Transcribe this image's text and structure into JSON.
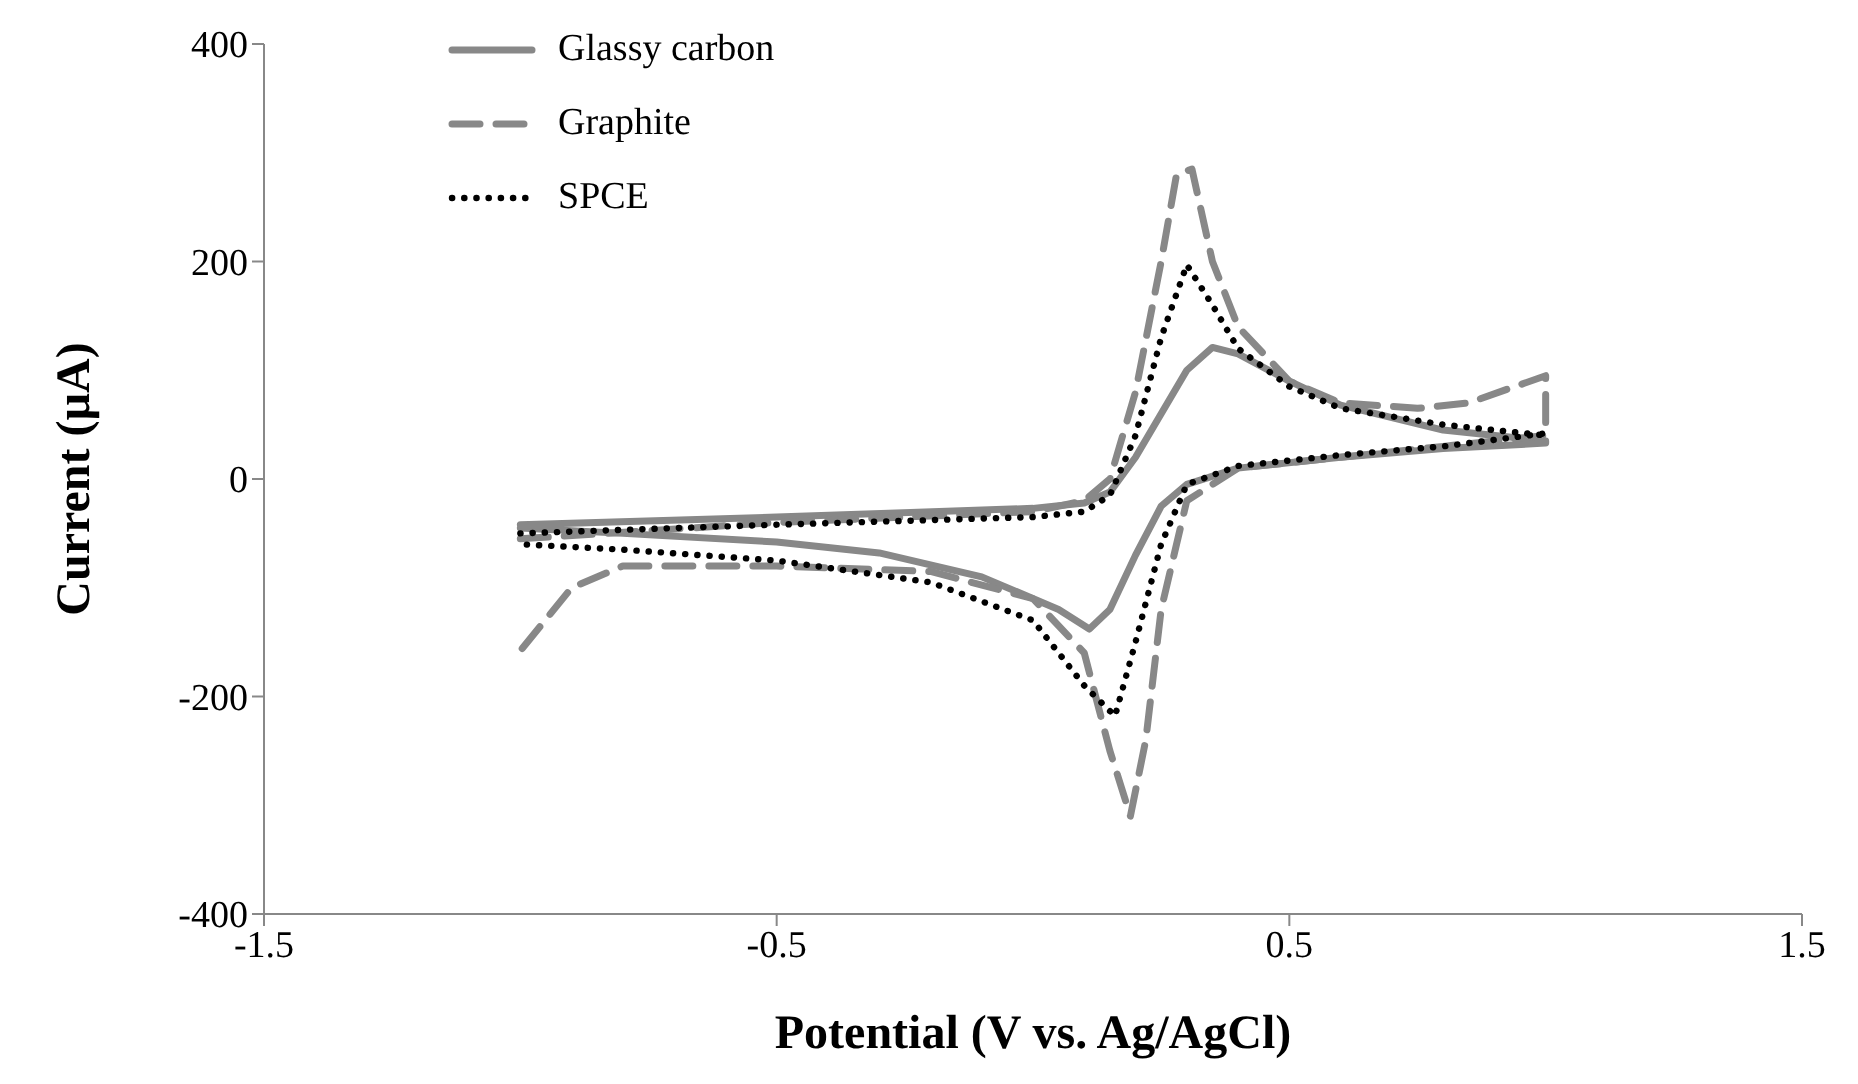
{
  "chart_data": {
    "type": "line",
    "xlabel": "Potential (V vs. Ag/AgCl)",
    "ylabel": "Current (µA)",
    "xlim": [
      -1.5,
      1.5
    ],
    "xticks": [
      -1.5,
      -0.5,
      0.5,
      1.5
    ],
    "ylim": [
      -400,
      400
    ],
    "yticks": [
      -400,
      -200,
      0,
      200,
      400
    ],
    "legend": "top left",
    "marker": "none",
    "series": [
      {
        "name": "Glassy carbon",
        "color": "#888888",
        "line_style": "solid",
        "x": [
          -1.0,
          -0.5,
          0,
          0.1,
          0.15,
          0.2,
          0.25,
          0.3,
          0.35,
          0.4,
          0.5,
          0.6,
          0.8,
          1.0,
          1.0,
          0.8,
          0.6,
          0.4,
          0.3,
          0.25,
          0.2,
          0.15,
          0.11,
          0.05,
          -0.1,
          -0.3,
          -0.5,
          -0.8,
          -1.0
        ],
        "values": [
          -42,
          -35,
          -27,
          -22,
          -12,
          20,
          60,
          100,
          121,
          115,
          90,
          68,
          45,
          35,
          33,
          28,
          20,
          10,
          -5,
          -25,
          -70,
          -120,
          -138,
          -120,
          -90,
          -68,
          -58,
          -50,
          -45
        ]
      },
      {
        "name": "Graphite",
        "color": "#888888",
        "line_style": "dashed",
        "x": [
          -1.0,
          -0.5,
          0,
          0.1,
          0.15,
          0.2,
          0.25,
          0.28,
          0.31,
          0.35,
          0.4,
          0.5,
          0.6,
          0.75,
          0.85,
          1.0,
          1.0,
          0.8,
          0.6,
          0.4,
          0.3,
          0.25,
          0.22,
          0.19,
          0.15,
          0.1,
          0,
          -0.2,
          -0.5,
          -0.8,
          -0.9,
          -1.0
        ],
        "values": [
          -55,
          -40,
          -30,
          -20,
          0,
          80,
          200,
          280,
          285,
          200,
          140,
          90,
          70,
          65,
          70,
          95,
          40,
          30,
          20,
          10,
          -20,
          -120,
          -240,
          -310,
          -250,
          -160,
          -110,
          -85,
          -80,
          -80,
          -100,
          -158
        ]
      },
      {
        "name": "SPCE",
        "color": "#000000",
        "line_style": "dotted",
        "x": [
          -1.0,
          -0.5,
          0,
          0.1,
          0.15,
          0.2,
          0.25,
          0.3,
          0.35,
          0.4,
          0.5,
          0.6,
          0.8,
          1.0,
          1.0,
          0.8,
          0.6,
          0.4,
          0.3,
          0.25,
          0.2,
          0.16,
          0.1,
          0,
          -0.2,
          -0.5,
          -0.8,
          -1.0
        ],
        "values": [
          -50,
          -42,
          -35,
          -30,
          -15,
          40,
          130,
          197,
          160,
          120,
          85,
          65,
          50,
          40,
          42,
          30,
          22,
          12,
          -5,
          -60,
          -150,
          -218,
          -190,
          -130,
          -95,
          -75,
          -65,
          -60
        ]
      }
    ]
  }
}
